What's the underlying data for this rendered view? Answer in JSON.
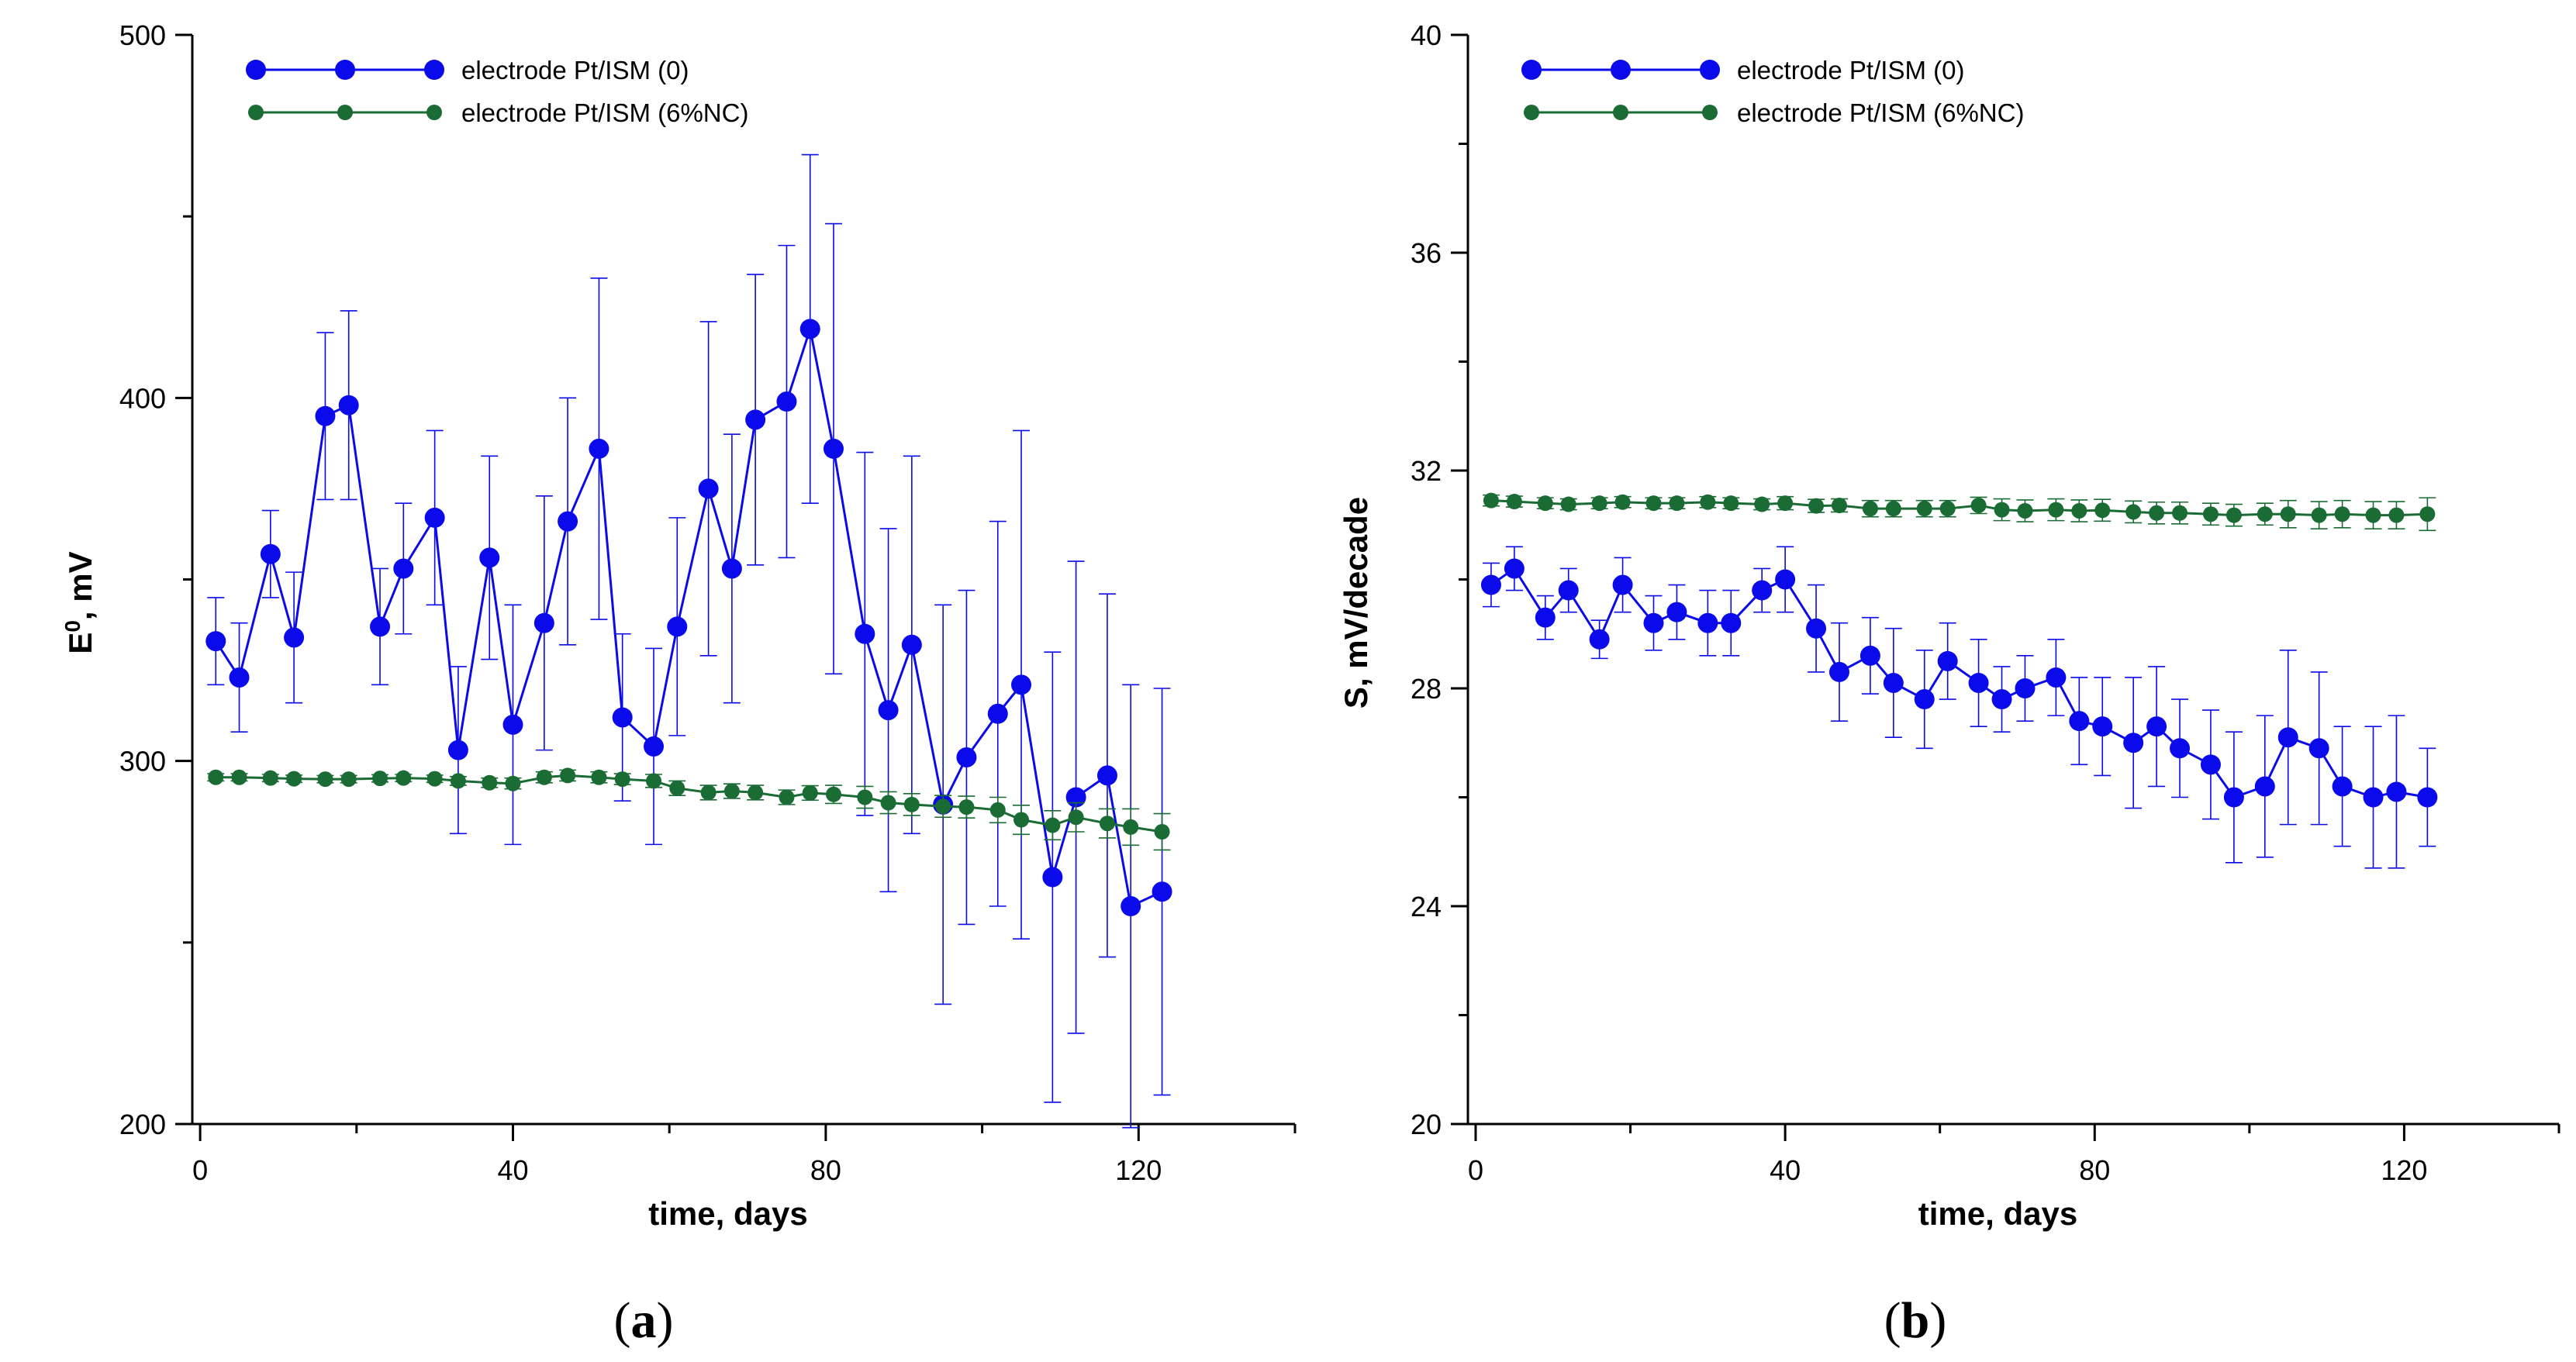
{
  "colors": {
    "blue": "#0a0aeb",
    "green": "#1a6b34",
    "axis": "#000000"
  },
  "chart_data": [
    {
      "id": "a",
      "type": "line",
      "panel_label": "a",
      "xlabel": "time, days",
      "ylabel_main": "E",
      "ylabel_sup": "0",
      "ylabel_rest": ", mV",
      "xlim": [
        -1,
        140
      ],
      "ylim": [
        200,
        500
      ],
      "xticks": [
        0,
        40,
        80,
        120
      ],
      "xtick_labels": [
        "0",
        "40",
        "80",
        "120"
      ],
      "yticks": [
        200,
        300,
        400,
        500
      ],
      "ytick_labels": [
        "200",
        "300",
        "400",
        "500"
      ],
      "xminor": [
        20,
        60,
        100,
        140
      ],
      "yminor": [
        250,
        350,
        450
      ],
      "legend": [
        "electrode Pt/ISM (0)",
        "electrode Pt/ISM (6%NC)"
      ],
      "series": [
        {
          "name": "electrode Pt/ISM (0)",
          "color": "blue",
          "x": [
            2,
            5,
            9,
            12,
            16,
            19,
            23,
            26,
            30,
            33,
            37,
            40,
            44,
            47,
            51,
            54,
            58,
            61,
            65,
            68,
            71,
            75,
            78,
            81,
            85,
            88,
            91,
            95,
            98,
            102,
            105,
            109,
            112,
            116,
            119,
            123
          ],
          "y": [
            333,
            323,
            357,
            334,
            395,
            398,
            337,
            353,
            367,
            303,
            356,
            310,
            338,
            366,
            386,
            312,
            304,
            337,
            375,
            353,
            394,
            399,
            419,
            386,
            335,
            314,
            332,
            288,
            301,
            313,
            321,
            268,
            290,
            296,
            260,
            264
          ],
          "err": [
            12,
            15,
            12,
            18,
            23,
            26,
            16,
            18,
            24,
            23,
            28,
            33,
            35,
            34,
            47,
            23,
            27,
            30,
            46,
            37,
            40,
            43,
            48,
            62,
            50,
            50,
            52,
            55,
            46,
            53,
            70,
            62,
            65,
            50,
            61,
            56
          ]
        },
        {
          "name": "electrode Pt/ISM (6%NC)",
          "color": "green",
          "x": [
            2,
            5,
            9,
            12,
            16,
            19,
            23,
            26,
            30,
            33,
            37,
            40,
            44,
            47,
            51,
            54,
            58,
            61,
            65,
            68,
            71,
            75,
            78,
            81,
            85,
            88,
            91,
            95,
            98,
            102,
            105,
            109,
            112,
            116,
            119,
            123
          ],
          "y": [
            295.5,
            295.5,
            295.3,
            295.1,
            295,
            295,
            295.2,
            295.3,
            295.1,
            294.5,
            294,
            293.8,
            295.5,
            296,
            295.5,
            295,
            294.5,
            292.5,
            291.3,
            291.7,
            291.3,
            290,
            291.2,
            290.8,
            290,
            288.5,
            288,
            287.5,
            287.3,
            286.5,
            283.8,
            282.3,
            284.5,
            282.8,
            281.8,
            280.5
          ],
          "err": [
            1,
            1,
            1,
            1,
            1,
            1,
            1,
            1,
            1,
            1.2,
            1.3,
            1.5,
            1.5,
            1.5,
            1.5,
            1.5,
            1.8,
            2,
            2,
            2,
            2,
            2,
            2,
            2.5,
            3,
            3,
            3,
            3,
            3,
            3.5,
            4,
            4,
            4,
            4,
            5,
            5
          ]
        }
      ]
    },
    {
      "id": "b",
      "type": "line",
      "panel_label": "b",
      "xlabel": "time, days",
      "ylabel_main": "S, mV/decade",
      "ylabel_sup": "",
      "ylabel_rest": "",
      "xlim": [
        -1,
        140
      ],
      "ylim": [
        20,
        40
      ],
      "xticks": [
        0,
        40,
        80,
        120
      ],
      "xtick_labels": [
        "0",
        "40",
        "80",
        "120"
      ],
      "yticks": [
        20,
        24,
        28,
        32,
        36,
        40
      ],
      "ytick_labels": [
        "20",
        "24",
        "28",
        "32",
        "36",
        "40"
      ],
      "xminor": [
        20,
        60,
        100,
        140
      ],
      "yminor": [
        22,
        26,
        30,
        34,
        38
      ],
      "legend": [
        "electrode Pt/ISM (0)",
        "electrode Pt/ISM (6%NC)"
      ],
      "series": [
        {
          "name": "electrode Pt/ISM (0)",
          "color": "blue",
          "x": [
            2,
            5,
            9,
            12,
            16,
            19,
            23,
            26,
            30,
            33,
            37,
            40,
            44,
            47,
            51,
            54,
            58,
            61,
            65,
            68,
            71,
            75,
            78,
            81,
            85,
            88,
            91,
            95,
            98,
            102,
            105,
            109,
            112,
            116,
            119,
            123
          ],
          "y": [
            29.9,
            30.2,
            29.3,
            29.8,
            28.9,
            29.9,
            29.2,
            29.4,
            29.2,
            29.2,
            29.8,
            30.0,
            29.1,
            28.3,
            28.6,
            28.1,
            27.8,
            28.5,
            28.1,
            27.8,
            28.0,
            28.2,
            27.4,
            27.3,
            27.0,
            27.3,
            26.9,
            26.6,
            26.0,
            26.2,
            27.1,
            26.9,
            26.2,
            26.0,
            26.1,
            26.0
          ],
          "err": [
            0.4,
            0.4,
            0.4,
            0.4,
            0.35,
            0.5,
            0.5,
            0.5,
            0.6,
            0.6,
            0.4,
            0.6,
            0.8,
            0.9,
            0.7,
            1.0,
            0.9,
            0.7,
            0.8,
            0.6,
            0.6,
            0.7,
            0.8,
            0.9,
            1.2,
            1.1,
            0.9,
            1.0,
            1.2,
            1.3,
            1.6,
            1.4,
            1.1,
            1.3,
            1.4,
            0.9
          ]
        },
        {
          "name": "electrode Pt/ISM (6%NC)",
          "color": "green",
          "x": [
            2,
            5,
            9,
            12,
            16,
            19,
            23,
            26,
            30,
            33,
            37,
            40,
            44,
            47,
            51,
            54,
            58,
            61,
            65,
            68,
            71,
            75,
            78,
            81,
            85,
            88,
            91,
            95,
            98,
            102,
            105,
            109,
            112,
            116,
            119,
            123
          ],
          "y": [
            31.45,
            31.43,
            31.4,
            31.38,
            31.4,
            31.42,
            31.4,
            31.4,
            31.42,
            31.4,
            31.38,
            31.4,
            31.35,
            31.36,
            31.3,
            31.3,
            31.3,
            31.3,
            31.36,
            31.28,
            31.26,
            31.28,
            31.26,
            31.27,
            31.24,
            31.22,
            31.22,
            31.2,
            31.18,
            31.2,
            31.2,
            31.18,
            31.2,
            31.18,
            31.18,
            31.2
          ],
          "err": [
            0.1,
            0.1,
            0.1,
            0.1,
            0.1,
            0.1,
            0.1,
            0.1,
            0.1,
            0.1,
            0.1,
            0.12,
            0.12,
            0.12,
            0.15,
            0.15,
            0.15,
            0.15,
            0.15,
            0.2,
            0.2,
            0.2,
            0.2,
            0.2,
            0.2,
            0.2,
            0.2,
            0.2,
            0.2,
            0.2,
            0.25,
            0.25,
            0.25,
            0.25,
            0.25,
            0.3
          ]
        }
      ]
    }
  ]
}
